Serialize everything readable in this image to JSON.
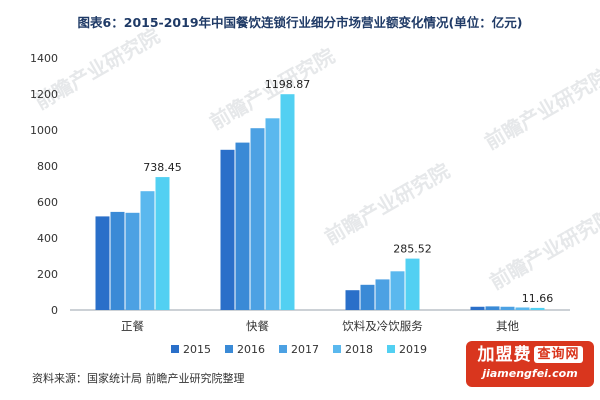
{
  "title": "图表6：2015-2019年中国餐饮连锁行业细分市场营业额变化情况(单位：亿元)",
  "source": "资料来源：国家统计局 前瞻产业研究院整理",
  "watermark": "前瞻产业研究院",
  "badge": {
    "main": "加盟费",
    "tag": "查询网",
    "url": "jiamengfei.com"
  },
  "colors": [
    "#2a6fc9",
    "#3a8ad6",
    "#4ca1e3",
    "#5ab8ee",
    "#52d0f2"
  ],
  "chart_data": {
    "type": "bar",
    "title": "图表6：2015-2019年中国餐饮连锁行业细分市场营业额变化情况(单位：亿元)",
    "categories": [
      "正餐",
      "快餐",
      "饮料及冷饮服务",
      "其他"
    ],
    "series": [
      {
        "name": "2015",
        "values": [
          520,
          890,
          110,
          18
        ]
      },
      {
        "name": "2016",
        "values": [
          545,
          930,
          140,
          20
        ]
      },
      {
        "name": "2017",
        "values": [
          540,
          1010,
          170,
          18
        ]
      },
      {
        "name": "2018",
        "values": [
          660,
          1065,
          215,
          14
        ]
      },
      {
        "name": "2019",
        "values": [
          738.45,
          1198.87,
          285.52,
          11.66
        ]
      }
    ],
    "data_labels": [
      "738.45",
      "1198.87",
      "285.52",
      "11.66"
    ],
    "yticks": [
      0,
      200,
      400,
      600,
      800,
      1000,
      1200,
      1400
    ],
    "ylim": [
      0,
      1400
    ],
    "xlabel": "",
    "ylabel": "",
    "grid": false,
    "legend_position": "bottom"
  }
}
